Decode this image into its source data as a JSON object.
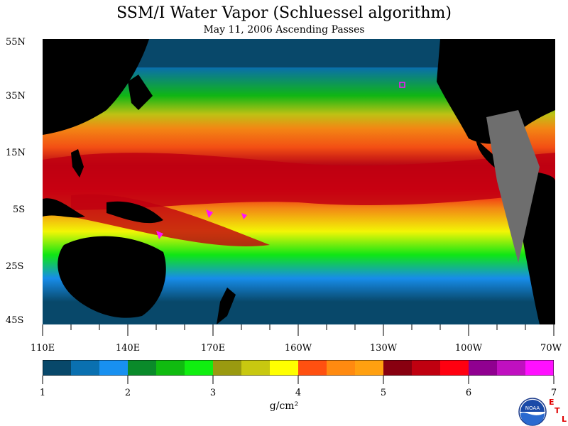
{
  "title": "SSM/I Water Vapor (Schluessel algorithm)",
  "subtitle": "May 11, 2006  Ascending Passes",
  "lat_labels": [
    "55N",
    "35N",
    "15N",
    "5S",
    "25S",
    "45S"
  ],
  "lon_labels": [
    "110E",
    "140E",
    "170E",
    "160W",
    "130W",
    "100W",
    "70W"
  ],
  "colorbar": {
    "ticks": [
      "1",
      "2",
      "3",
      "4",
      "5",
      "6",
      "7"
    ],
    "units": "g/cm²",
    "colors": [
      "#08486a",
      "#0a70b0",
      "#1890f0",
      "#0a8a2a",
      "#10bb10",
      "#10ee10",
      "#9a9a10",
      "#c8c810",
      "#ffff00",
      "#ff5010",
      "#ff8a10",
      "#ffa010",
      "#880010",
      "#c00010",
      "#ff0010",
      "#900090",
      "#c010c0",
      "#ff10ff"
    ]
  },
  "logo": {
    "text": "NOAA",
    "letters": [
      "E",
      "T",
      "L"
    ]
  }
}
